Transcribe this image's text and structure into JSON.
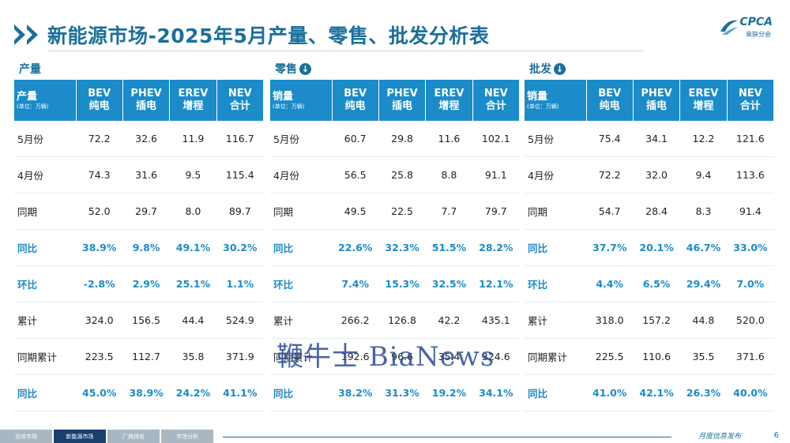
{
  "title": "新能源市场-2025年5月产量、零售、批发分析表",
  "logo": {
    "mark": "CPCA",
    "sub": "乘联分会"
  },
  "columns": [
    {
      "code": "BEV",
      "cn": "纯电"
    },
    {
      "code": "PHEV",
      "cn": "插电"
    },
    {
      "code": "EREV",
      "cn": "增程"
    },
    {
      "code": "NEV",
      "cn": "合计"
    }
  ],
  "unit_label": "(单位：万辆)",
  "panels": [
    {
      "label": "产量",
      "has_icon": false,
      "header": "产量",
      "rows": [
        {
          "label": "5月份",
          "values": [
            "72.2",
            "32.6",
            "11.9",
            "116.7"
          ],
          "pct": false
        },
        {
          "label": "4月份",
          "values": [
            "74.3",
            "31.6",
            "9.5",
            "115.4"
          ],
          "pct": false
        },
        {
          "label": "同期",
          "values": [
            "52.0",
            "29.7",
            "8.0",
            "89.7"
          ],
          "pct": false
        },
        {
          "label": "同比",
          "values": [
            "38.9%",
            "9.8%",
            "49.1%",
            "30.2%"
          ],
          "pct": true
        },
        {
          "label": "环比",
          "values": [
            "-2.8%",
            "2.9%",
            "25.1%",
            "1.1%"
          ],
          "pct": true
        },
        {
          "label": "累计",
          "values": [
            "324.0",
            "156.5",
            "44.4",
            "524.9"
          ],
          "pct": false
        },
        {
          "label": "同期累计",
          "values": [
            "223.5",
            "112.7",
            "35.8",
            "371.9"
          ],
          "pct": false
        },
        {
          "label": "同比",
          "values": [
            "45.0%",
            "38.9%",
            "24.2%",
            "41.1%"
          ],
          "pct": true
        }
      ]
    },
    {
      "label": "零售",
      "has_icon": true,
      "header": "销量",
      "rows": [
        {
          "label": "5月份",
          "values": [
            "60.7",
            "29.8",
            "11.6",
            "102.1"
          ],
          "pct": false
        },
        {
          "label": "4月份",
          "values": [
            "56.5",
            "25.8",
            "8.8",
            "91.1"
          ],
          "pct": false
        },
        {
          "label": "同期",
          "values": [
            "49.5",
            "22.5",
            "7.7",
            "79.7"
          ],
          "pct": false
        },
        {
          "label": "同比",
          "values": [
            "22.6%",
            "32.3%",
            "51.5%",
            "28.2%"
          ],
          "pct": true
        },
        {
          "label": "环比",
          "values": [
            "7.4%",
            "15.3%",
            "32.5%",
            "12.1%"
          ],
          "pct": true
        },
        {
          "label": "累计",
          "values": [
            "266.2",
            "126.8",
            "42.2",
            "435.1"
          ],
          "pct": false
        },
        {
          "label": "同期累计",
          "values": [
            "192.6",
            "96.6",
            "35.4",
            "324.6"
          ],
          "pct": false
        },
        {
          "label": "同比",
          "values": [
            "38.2%",
            "31.3%",
            "19.2%",
            "34.1%"
          ],
          "pct": true
        }
      ]
    },
    {
      "label": "批发",
      "has_icon": true,
      "header": "销量",
      "rows": [
        {
          "label": "5月份",
          "values": [
            "75.4",
            "34.1",
            "12.2",
            "121.6"
          ],
          "pct": false
        },
        {
          "label": "4月份",
          "values": [
            "72.2",
            "32.0",
            "9.4",
            "113.6"
          ],
          "pct": false
        },
        {
          "label": "同期",
          "values": [
            "54.7",
            "28.4",
            "8.3",
            "91.4"
          ],
          "pct": false
        },
        {
          "label": "同比",
          "values": [
            "37.7%",
            "20.1%",
            "46.7%",
            "33.0%"
          ],
          "pct": true
        },
        {
          "label": "环比",
          "values": [
            "4.4%",
            "6.5%",
            "29.4%",
            "7.0%"
          ],
          "pct": true
        },
        {
          "label": "累计",
          "values": [
            "318.0",
            "157.2",
            "44.8",
            "520.0"
          ],
          "pct": false
        },
        {
          "label": "同期累计",
          "values": [
            "225.5",
            "110.6",
            "35.5",
            "371.6"
          ],
          "pct": false
        },
        {
          "label": "同比",
          "values": [
            "41.0%",
            "42.1%",
            "26.3%",
            "40.0%"
          ],
          "pct": true
        }
      ]
    }
  ],
  "watermark": "鞭牛士 BiaNews",
  "footer": {
    "tabs": [
      "总体市场",
      "新能源市场",
      "厂商排名",
      "市场分析"
    ],
    "active_tab": 1,
    "right_text": "月度信息发布",
    "page": "6"
  },
  "colors": {
    "primary": "#1b6f9c",
    "header_bg": "#1b8bc9",
    "pct_text": "#1b8bc9"
  }
}
